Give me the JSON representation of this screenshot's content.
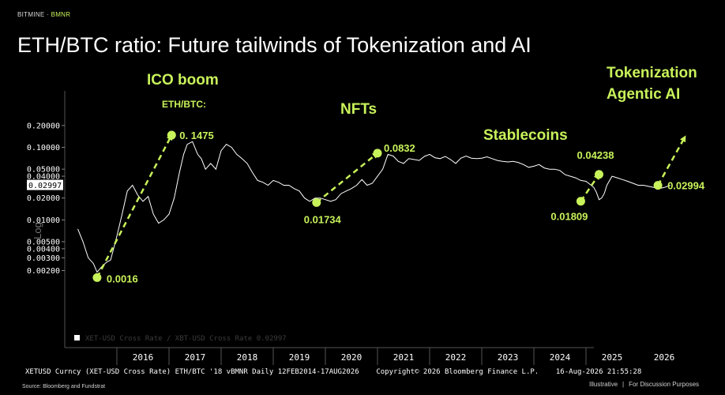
{
  "header": {
    "brand": "BITMINE",
    "brand_sep": "·",
    "brand_symbol": "BMNR"
  },
  "title": "ETH/BTC ratio: Future tailwinds of Tokenization and AI",
  "footer": {
    "bloomberg_line": "XETUSD Curncy (XET-USD Cross Rate) ETH/BTC '18 vBMNR Daily 12FEB2014-17AUG2026    Copyright© 2026 Bloomberg Finance L.P.    16-Aug-2026 21:55:28",
    "source": "Source: Bloomberg and Fundstrat",
    "illustrative": "Illustrative",
    "sep": "|",
    "discussion": "For Discussion Purposes"
  },
  "colors": {
    "accent": "#c8f25a",
    "line": "#ffffff",
    "background": "#000000"
  },
  "chart_data": {
    "type": "line",
    "y_scale": "log",
    "ylabel": "Log",
    "ylim": [
      0.0016,
      0.24
    ],
    "xlim": [
      2015.2,
      2026.9
    ],
    "y_ticks": [
      "0.20000",
      "0.10000",
      "0.05000",
      "0.04000",
      "0.02000",
      "0.01000",
      "0.00500",
      "0.00400",
      "0.00300",
      "0.00200"
    ],
    "y_tick_values": [
      0.2,
      0.1,
      0.05,
      0.04,
      0.02,
      0.01,
      0.005,
      0.004,
      0.003,
      0.002
    ],
    "last_price_label": "0.02997",
    "last_price_value": 0.02997,
    "x_ticks": [
      "2016",
      "2017",
      "2018",
      "2019",
      "2020",
      "2021",
      "2022",
      "2023",
      "2024",
      "2025",
      "2026"
    ],
    "legend": "XET-USD Cross Rate / XBT-USD Cross Rate 0.02997",
    "series": [
      {
        "x": [
          2015.25,
          2015.35,
          2015.45,
          2015.55,
          2015.62,
          2015.72,
          2015.8,
          2015.88,
          2016.0,
          2016.1,
          2016.2,
          2016.3,
          2016.4,
          2016.5,
          2016.6,
          2016.7,
          2016.8,
          2016.9,
          2017.0,
          2017.1,
          2017.2,
          2017.28,
          2017.35,
          2017.45,
          2017.55,
          2017.62,
          2017.7,
          2017.8,
          2017.9,
          2018.0,
          2018.1,
          2018.2,
          2018.3,
          2018.4,
          2018.5,
          2018.6,
          2018.7,
          2018.8,
          2018.9,
          2019.0,
          2019.1,
          2019.2,
          2019.3,
          2019.4,
          2019.5,
          2019.6,
          2019.7,
          2019.8,
          2019.9,
          2020.0,
          2020.1,
          2020.2,
          2020.3,
          2020.4,
          2020.5,
          2020.6,
          2020.7,
          2020.8,
          2020.9,
          2021.0,
          2021.1,
          2021.2,
          2021.3,
          2021.4,
          2021.5,
          2021.6,
          2021.7,
          2021.8,
          2021.9,
          2022.0,
          2022.1,
          2022.2,
          2022.3,
          2022.4,
          2022.5,
          2022.6,
          2022.7,
          2022.8,
          2022.9,
          2023.0,
          2023.1,
          2023.2,
          2023.3,
          2023.4,
          2023.5,
          2023.6,
          2023.7,
          2023.8,
          2023.9,
          2024.0,
          2024.1,
          2024.2,
          2024.3,
          2024.4,
          2024.5,
          2024.6,
          2024.7,
          2024.8,
          2024.9,
          2025.0,
          2025.05,
          2025.1,
          2025.15,
          2025.2,
          2025.25,
          2025.3,
          2025.35,
          2025.4,
          2025.5,
          2025.6,
          2025.7,
          2025.8,
          2025.9,
          2026.0,
          2026.1,
          2026.2,
          2026.3,
          2026.4,
          2026.5,
          2026.62
        ],
        "values": [
          0.0075,
          0.005,
          0.003,
          0.0025,
          0.0019,
          0.0023,
          0.0026,
          0.0028,
          0.006,
          0.012,
          0.025,
          0.03,
          0.022,
          0.018,
          0.021,
          0.012,
          0.009,
          0.01,
          0.012,
          0.02,
          0.045,
          0.08,
          0.11,
          0.12,
          0.08,
          0.07,
          0.05,
          0.06,
          0.05,
          0.09,
          0.11,
          0.1,
          0.08,
          0.07,
          0.06,
          0.045,
          0.035,
          0.033,
          0.03,
          0.035,
          0.033,
          0.03,
          0.03,
          0.027,
          0.025,
          0.02,
          0.018,
          0.02,
          0.02,
          0.019,
          0.018,
          0.019,
          0.023,
          0.025,
          0.027,
          0.03,
          0.036,
          0.03,
          0.032,
          0.04,
          0.05,
          0.08,
          0.076,
          0.064,
          0.06,
          0.07,
          0.068,
          0.066,
          0.075,
          0.08,
          0.072,
          0.07,
          0.075,
          0.068,
          0.06,
          0.071,
          0.076,
          0.071,
          0.07,
          0.071,
          0.074,
          0.07,
          0.066,
          0.064,
          0.063,
          0.064,
          0.062,
          0.058,
          0.053,
          0.055,
          0.058,
          0.052,
          0.05,
          0.05,
          0.048,
          0.042,
          0.04,
          0.038,
          0.035,
          0.034,
          0.032,
          0.03,
          0.028,
          0.024,
          0.019,
          0.02,
          0.023,
          0.03,
          0.04,
          0.038,
          0.036,
          0.034,
          0.032,
          0.03,
          0.03,
          0.029,
          0.028,
          0.027,
          0.028,
          0.03
        ],
        "color": "#ffffff"
      }
    ],
    "highlights": [
      {
        "label": "0.0016",
        "x": 2015.62,
        "value": 0.0016
      },
      {
        "label": "0. 1475",
        "x": 2017.05,
        "value": 0.1475
      },
      {
        "label": "0.01734",
        "x": 2019.83,
        "value": 0.01734
      },
      {
        "label": "0.0832",
        "x": 2021.0,
        "value": 0.0832
      },
      {
        "label": "0.01809",
        "x": 2024.9,
        "value": 0.01809
      },
      {
        "label": "0.04238",
        "x": 2025.25,
        "value": 0.04238
      },
      {
        "label": "0.02994",
        "x": 2026.38,
        "value": 0.02994
      }
    ],
    "annotations": {
      "ico": "ICO boom",
      "ethbtc": "ETH/BTC:",
      "nfts": "NFTs",
      "stablecoins": "Stablecoins",
      "tokenization": "Tokenization",
      "agentic": "Agentic AI"
    }
  }
}
